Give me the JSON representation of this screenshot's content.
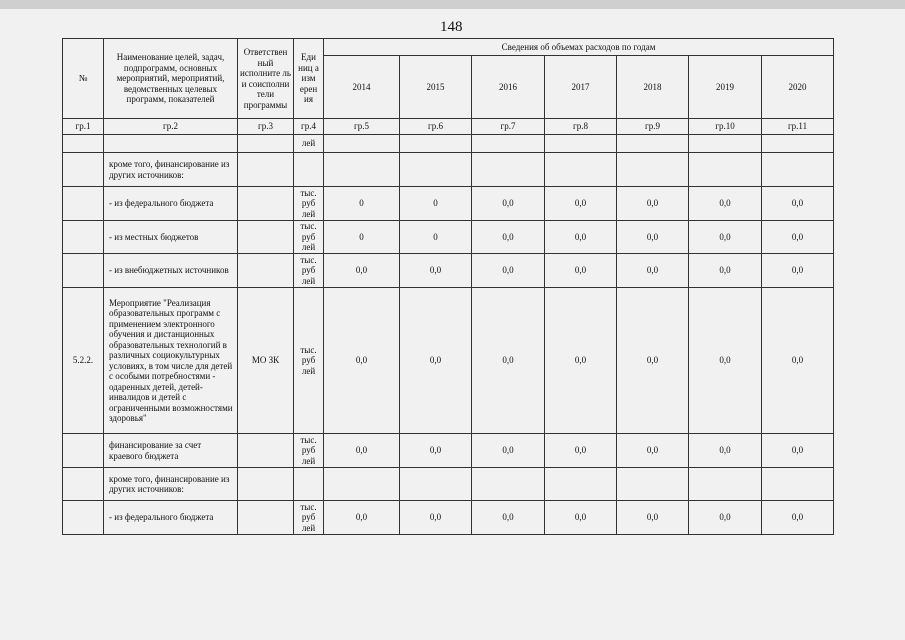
{
  "page_number": "148",
  "header": {
    "num": "№",
    "name": "Наименование целей, задач, подпрограмм, основных мероприятий, мероприятий, ведомственных целевых программ, показателей",
    "responsible": "Ответствен ный исполните ль и соисполни тели программы",
    "unit": "Еди ниц а изм ерен ия",
    "years_group": "Сведения об объемах расходов по годам",
    "years": [
      "2014",
      "2015",
      "2016",
      "2017",
      "2018",
      "2019",
      "2020"
    ],
    "col_numbers": [
      "гр.1",
      "гр.2",
      "гр.3",
      "гр.4",
      "гр.5",
      "гр.6",
      "гр.7",
      "гр.8",
      "гр.9",
      "гр.10",
      "гр.11"
    ]
  },
  "rows": [
    {
      "num": "",
      "name": "",
      "resp": "",
      "unit": "лей",
      "values": [
        "",
        "",
        "",
        "",
        "",
        "",
        ""
      ]
    },
    {
      "num": "",
      "name": "кроме того, финансирование из других источников:",
      "resp": "",
      "unit": "",
      "values": [
        "",
        "",
        "",
        "",
        "",
        "",
        ""
      ]
    },
    {
      "num": "",
      "name": " - из федерального бюджета",
      "resp": "",
      "unit": "тыс. руб лей",
      "values": [
        "0",
        "0",
        "0,0",
        "0,0",
        "0,0",
        "0,0",
        "0,0"
      ]
    },
    {
      "num": "",
      "name": " - из местных бюджетов",
      "resp": "",
      "unit": "тыс. руб лей",
      "values": [
        "0",
        "0",
        "0,0",
        "0,0",
        "0,0",
        "0,0",
        "0,0"
      ]
    },
    {
      "num": "",
      "name": " - из внебюджетных источников",
      "resp": "",
      "unit": "тыс. руб лей",
      "values": [
        "0,0",
        "0,0",
        "0,0",
        "0,0",
        "0,0",
        "0,0",
        "0,0"
      ]
    },
    {
      "num": "5.2.2.",
      "name": "Мероприятие \"Реализация образовательных программ с применением электронного обучения и дистанционных образовательных технологий в различных социокультурных условиях, в том числе для детей с особыми потребностями - одаренных детей, детей-инвалидов и детей с ограниченными возможностями здоровья\"",
      "resp": "МО ЗК",
      "unit": "тыс. руб лей",
      "values": [
        "0,0",
        "0,0",
        "0,0",
        "0,0",
        "0,0",
        "0,0",
        "0,0"
      ]
    },
    {
      "num": "",
      "name": "финансирование за счет краевого бюджета",
      "resp": "",
      "unit": "тыс. руб лей",
      "values": [
        "0,0",
        "0,0",
        "0,0",
        "0,0",
        "0,0",
        "0,0",
        "0,0"
      ]
    },
    {
      "num": "",
      "name": "кроме того, финансирование из других источников:",
      "resp": "",
      "unit": "",
      "values": [
        "",
        "",
        "",
        "",
        "",
        "",
        ""
      ]
    },
    {
      "num": "",
      "name": " - из федерального бюджета",
      "resp": "",
      "unit": "тыс. руб лей",
      "values": [
        "0,0",
        "0,0",
        "0,0",
        "0,0",
        "0,0",
        "0,0",
        "0,0"
      ]
    }
  ]
}
